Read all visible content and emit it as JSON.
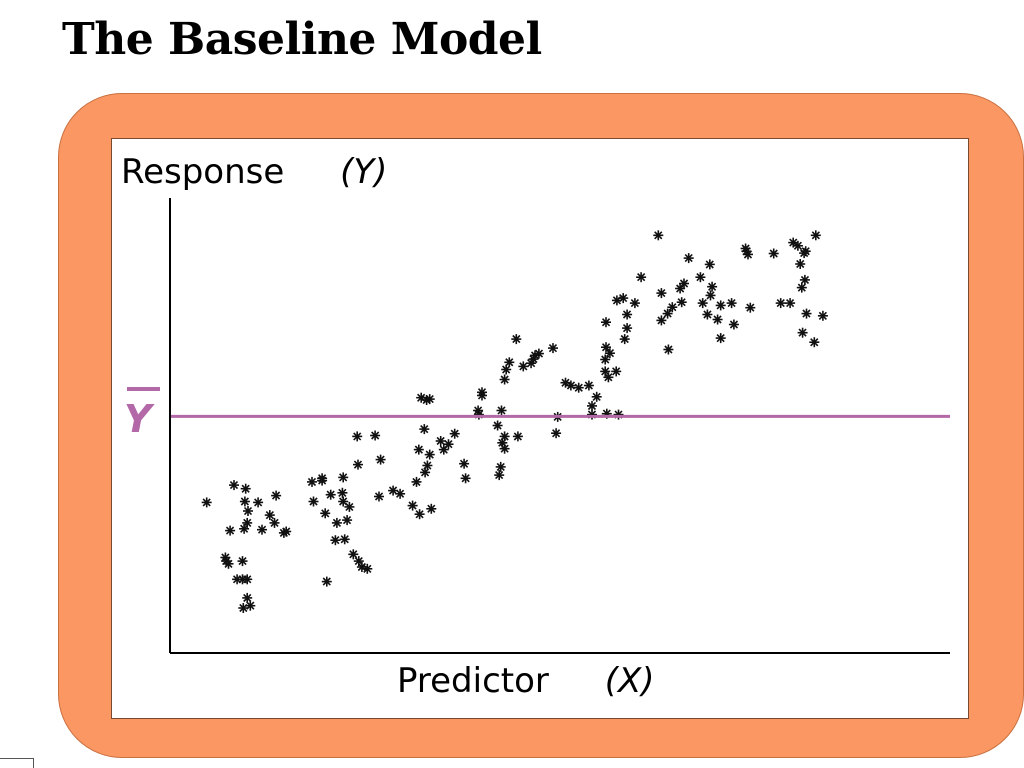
{
  "slide": {
    "title": "The Baseline Model"
  },
  "colors": {
    "frame": "#fb9763",
    "mean_line": "#b368a8",
    "points": "#111111",
    "axes": "#000000"
  },
  "chart_data": {
    "type": "scatter",
    "title": "",
    "ylabel": "Response",
    "ylabel_symbol": "(Y)",
    "xlabel": "Predictor",
    "xlabel_symbol": "(X)",
    "mean_label": "Y",
    "mean_label_has_bar": true,
    "mean_y": 52,
    "xlim": [
      0,
      100
    ],
    "ylim": [
      0,
      100
    ],
    "grid": false,
    "legend": "none",
    "marker": "asterisk",
    "points": [
      [
        4.7,
        33.1
      ],
      [
        7.7,
        26.9
      ],
      [
        7.1,
        21.0
      ],
      [
        7.5,
        19.6
      ],
      [
        7.2,
        20.2
      ],
      [
        8.2,
        36.9
      ],
      [
        8.6,
        16.2
      ],
      [
        9.3,
        16.2
      ],
      [
        9.7,
        36.1
      ],
      [
        9.6,
        33.3
      ],
      [
        9.5,
        27.3
      ],
      [
        9.9,
        28.6
      ],
      [
        10.0,
        31.2
      ],
      [
        9.3,
        20.2
      ],
      [
        9.9,
        16.2
      ],
      [
        9.9,
        12.1
      ],
      [
        9.4,
        9.9
      ],
      [
        10.3,
        10.4
      ],
      [
        11.3,
        33.1
      ],
      [
        11.8,
        27.1
      ],
      [
        13.6,
        34.6
      ],
      [
        13.4,
        28.6
      ],
      [
        14.6,
        26.4
      ],
      [
        14.9,
        26.7
      ],
      [
        12.8,
        30.3
      ],
      [
        18.4,
        33.3
      ],
      [
        18.2,
        37.6
      ],
      [
        19.5,
        37.9
      ],
      [
        19.5,
        38.4
      ],
      [
        20.6,
        34.8
      ],
      [
        19.9,
        30.7
      ],
      [
        22.2,
        38.6
      ],
      [
        22.1,
        35.2
      ],
      [
        22.2,
        33.3
      ],
      [
        23.0,
        32.1
      ],
      [
        22.7,
        29.2
      ],
      [
        21.4,
        28.6
      ],
      [
        22.4,
        25.0
      ],
      [
        21.2,
        24.8
      ],
      [
        20.1,
        15.7
      ],
      [
        23.5,
        21.7
      ],
      [
        24.2,
        20.2
      ],
      [
        24.6,
        18.9
      ],
      [
        25.3,
        18.5
      ],
      [
        24.1,
        41.4
      ],
      [
        24.0,
        47.6
      ],
      [
        27.0,
        42.5
      ],
      [
        26.3,
        47.8
      ],
      [
        26.8,
        34.4
      ],
      [
        28.6,
        35.7
      ],
      [
        29.5,
        35.0
      ],
      [
        31.1,
        32.4
      ],
      [
        32.0,
        30.5
      ],
      [
        33.5,
        31.7
      ],
      [
        31.6,
        37.6
      ],
      [
        32.7,
        39.7
      ],
      [
        33.0,
        41.2
      ],
      [
        33.3,
        43.6
      ],
      [
        31.9,
        44.7
      ],
      [
        32.6,
        49.2
      ],
      [
        34.7,
        46.6
      ],
      [
        32.2,
        56.1
      ],
      [
        32.9,
        55.6
      ],
      [
        33.3,
        55.8
      ],
      [
        35.1,
        44.7
      ],
      [
        36.5,
        48.2
      ],
      [
        35.7,
        45.9
      ],
      [
        37.7,
        41.6
      ],
      [
        37.9,
        38.4
      ],
      [
        39.6,
        52.4
      ],
      [
        39.5,
        53.3
      ],
      [
        40.0,
        57.3
      ],
      [
        40.0,
        56.6
      ],
      [
        42.5,
        53.3
      ],
      [
        42.0,
        50.0
      ],
      [
        42.9,
        47.6
      ],
      [
        42.6,
        46.2
      ],
      [
        42.9,
        44.9
      ],
      [
        42.4,
        40.9
      ],
      [
        42.2,
        39.1
      ],
      [
        42.9,
        60.1
      ],
      [
        43.1,
        62.3
      ],
      [
        43.5,
        63.9
      ],
      [
        44.6,
        47.6
      ],
      [
        45.3,
        63.0
      ],
      [
        44.4,
        69.0
      ],
      [
        46.3,
        63.7
      ],
      [
        46.6,
        64.6
      ],
      [
        46.8,
        65.4
      ],
      [
        47.3,
        65.8
      ],
      [
        49.1,
        67.0
      ],
      [
        49.7,
        51.9
      ],
      [
        49.5,
        48.3
      ],
      [
        50.7,
        59.4
      ],
      [
        51.4,
        58.8
      ],
      [
        52.4,
        58.3
      ],
      [
        54.1,
        52.4
      ],
      [
        54.1,
        54.3
      ],
      [
        54.7,
        56.3
      ],
      [
        53.7,
        58.8
      ],
      [
        55.8,
        61.9
      ],
      [
        56.2,
        60.6
      ],
      [
        56.0,
        52.6
      ],
      [
        55.8,
        64.5
      ],
      [
        56.4,
        65.9
      ],
      [
        55.9,
        67.2
      ],
      [
        57.2,
        61.9
      ],
      [
        57.5,
        52.4
      ],
      [
        55.9,
        72.7
      ],
      [
        57.3,
        77.5
      ],
      [
        58.3,
        69.0
      ],
      [
        58.1,
        78.0
      ],
      [
        58.6,
        74.4
      ],
      [
        58.6,
        71.4
      ],
      [
        59.6,
        76.9
      ],
      [
        60.4,
        82.6
      ],
      [
        62.6,
        91.8
      ],
      [
        63.0,
        73.1
      ],
      [
        63.0,
        79.1
      ],
      [
        63.9,
        66.7
      ],
      [
        63.8,
        74.6
      ],
      [
        64.4,
        76.0
      ],
      [
        65.9,
        81.2
      ],
      [
        66.5,
        86.8
      ],
      [
        65.6,
        77.1
      ],
      [
        65.4,
        80.1
      ],
      [
        68.0,
        82.6
      ],
      [
        68.3,
        76.9
      ],
      [
        69.2,
        85.4
      ],
      [
        69.5,
        80.5
      ],
      [
        69.3,
        78.6
      ],
      [
        68.9,
        74.4
      ],
      [
        70.2,
        73.3
      ],
      [
        70.6,
        76.4
      ],
      [
        70.6,
        69.2
      ],
      [
        72.0,
        76.9
      ],
      [
        72.3,
        72.2
      ],
      [
        73.8,
        88.9
      ],
      [
        73.9,
        88.3
      ],
      [
        74.1,
        87.6
      ],
      [
        74.4,
        75.9
      ],
      [
        77.4,
        87.8
      ],
      [
        78.3,
        76.9
      ],
      [
        79.9,
        90.2
      ],
      [
        81.0,
        80.3
      ],
      [
        81.4,
        82.0
      ],
      [
        80.8,
        85.5
      ],
      [
        81.5,
        88.3
      ],
      [
        81.3,
        87.9
      ],
      [
        80.5,
        89.5
      ],
      [
        81.6,
        74.6
      ],
      [
        82.8,
        91.8
      ],
      [
        81.1,
        70.4
      ],
      [
        82.6,
        68.3
      ],
      [
        83.7,
        74.1
      ],
      [
        79.5,
        76.9
      ]
    ]
  }
}
